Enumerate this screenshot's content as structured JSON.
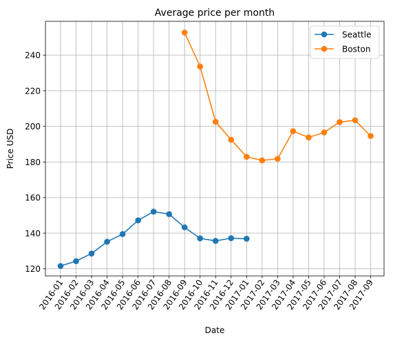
{
  "chart_data": {
    "type": "line",
    "title": "Average price per month",
    "xlabel": "Date",
    "ylabel": "Price USD",
    "categories": [
      "2016-01",
      "2016-02",
      "2016-03",
      "2016-04",
      "2016-05",
      "2016-06",
      "2016-07",
      "2016-08",
      "2016-09",
      "2016-10",
      "2016-11",
      "2016-12",
      "2017-01",
      "2017-02",
      "2017-03",
      "2017-04",
      "2017-05",
      "2017-06",
      "2017-07",
      "2017-08",
      "2017-09"
    ],
    "yticks": [
      120,
      140,
      160,
      180,
      200,
      220,
      240
    ],
    "ylim": [
      116,
      259
    ],
    "grid": true,
    "legend_position": "top-right",
    "series": [
      {
        "name": "Seattle",
        "color": "#1f77b4",
        "marker": "circle",
        "values": [
          121.6,
          124.3,
          128.6,
          135.2,
          139.5,
          147.2,
          152.1,
          150.7,
          143.3,
          137.1,
          135.7,
          137.2,
          136.9,
          null,
          null,
          null,
          null,
          null,
          null,
          null,
          null
        ]
      },
      {
        "name": "Boston",
        "color": "#ff7f0e",
        "marker": "circle",
        "values": [
          null,
          null,
          null,
          null,
          null,
          null,
          null,
          null,
          252.7,
          233.6,
          202.6,
          192.5,
          182.9,
          180.9,
          181.8,
          197.3,
          193.8,
          196.6,
          202.4,
          203.4,
          194.6
        ]
      }
    ]
  }
}
